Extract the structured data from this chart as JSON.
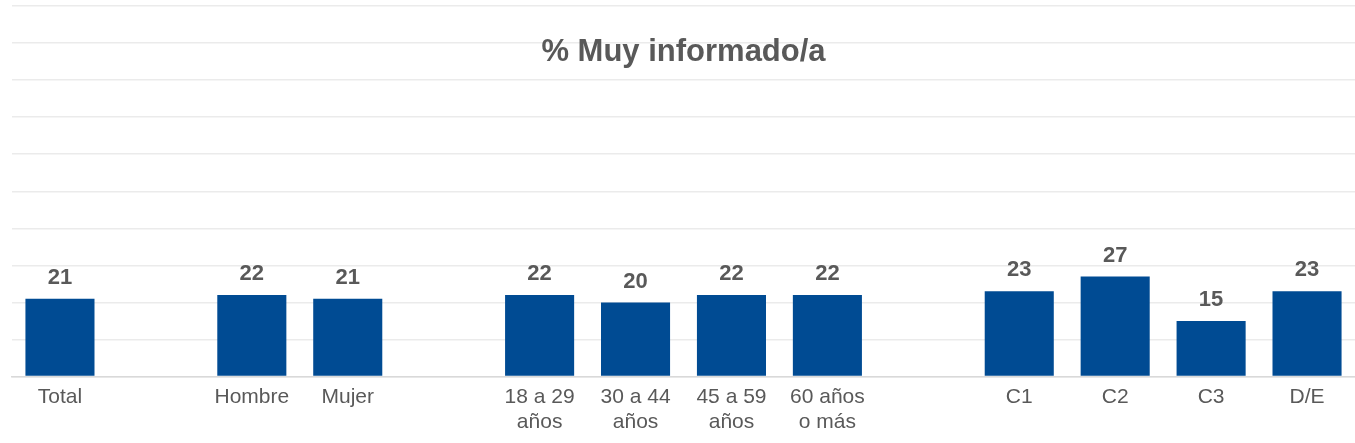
{
  "chart_data": {
    "type": "bar",
    "title": "% Muy informado/a",
    "categories": [
      "Total",
      null,
      "Hombre",
      "Mujer",
      null,
      "18 a 29 años",
      "30 a 44 años",
      "45 a 59 años",
      "60 años o más",
      null,
      "C1",
      "C2",
      "C3",
      "D/E"
    ],
    "values": [
      21,
      null,
      22,
      21,
      null,
      22,
      20,
      22,
      22,
      null,
      23,
      27,
      15,
      23
    ],
    "color": "#004b93",
    "ylim": [
      0,
      100
    ],
    "tick_labels": "x",
    "grid": "y",
    "legend": false,
    "data_labels": true
  }
}
